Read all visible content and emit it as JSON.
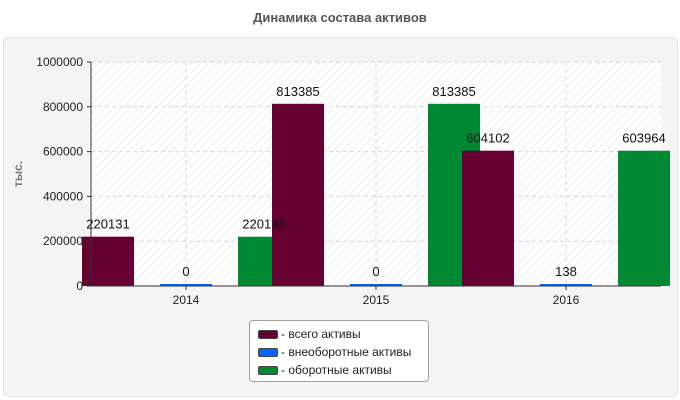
{
  "chart_data": {
    "type": "bar",
    "title": "Динамика состава активов",
    "ylabel": "тыс.",
    "xlabel": "",
    "categories": [
      "2014",
      "2015",
      "2016"
    ],
    "ylim": [
      0,
      1000000
    ],
    "yticks": [
      0,
      200000,
      400000,
      600000,
      800000,
      1000000
    ],
    "grid": true,
    "legend_position": "bottom",
    "series": [
      {
        "name": "всего активы",
        "color": "#660033",
        "values": [
          220131,
          813385,
          604102
        ]
      },
      {
        "name": "внеоборотные активы",
        "color": "#0066ff",
        "values": [
          0,
          0,
          138
        ]
      },
      {
        "name": "оборотные активы",
        "color": "#008833",
        "values": [
          220131,
          813385,
          603964
        ]
      }
    ]
  },
  "legend": {
    "prefix": "- ",
    "items": [
      "всего активы",
      "внеоборотные активы",
      "оборотные активы"
    ]
  }
}
